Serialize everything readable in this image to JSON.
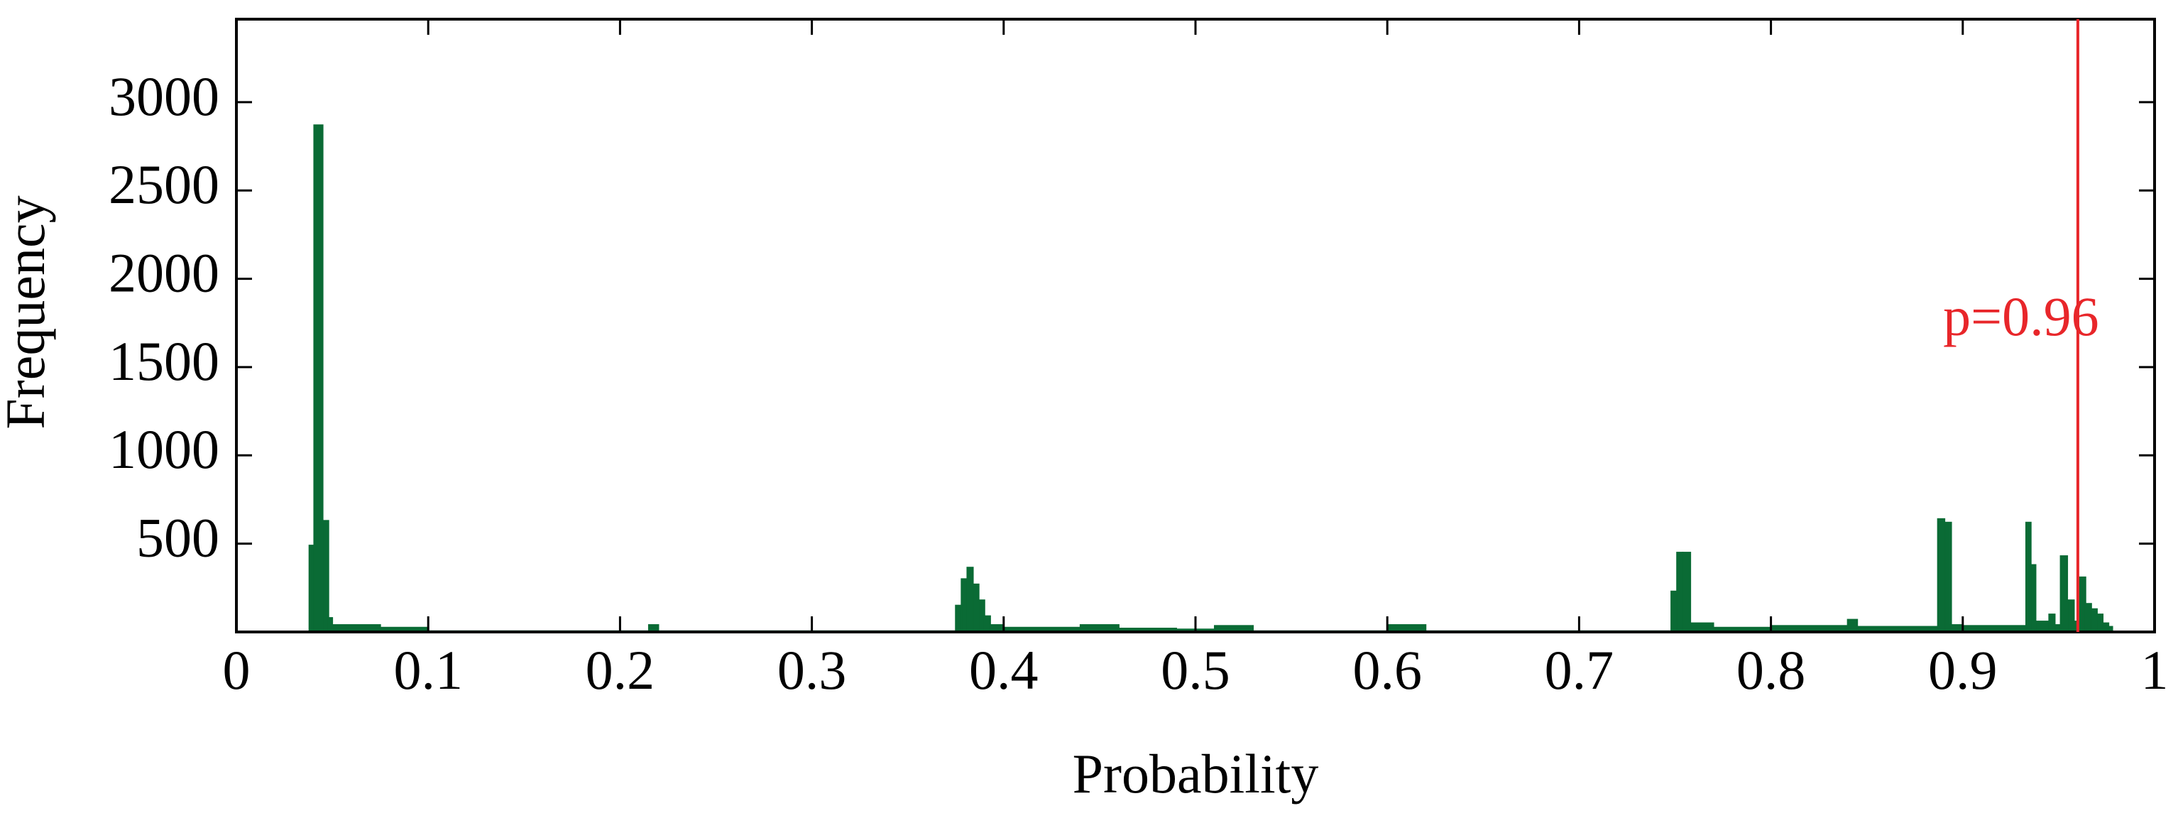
{
  "chart_data": {
    "type": "histogram",
    "xlabel": "Probability",
    "ylabel": "Frequency",
    "bins": [
      0.038,
      0.0405,
      0.045,
      0.048,
      0.05,
      0.075,
      0.1,
      0.215,
      0.22,
      0.375,
      0.378,
      0.381,
      0.384,
      0.387,
      0.39,
      0.393,
      0.4,
      0.44,
      0.46,
      0.49,
      0.51,
      0.53,
      0.6,
      0.62,
      0.748,
      0.751,
      0.754,
      0.758,
      0.77,
      0.8,
      0.84,
      0.845,
      0.887,
      0.8905,
      0.894,
      0.9,
      0.933,
      0.9355,
      0.938,
      0.945,
      0.948,
      0.951,
      0.9545,
      0.958,
      0.961,
      0.964,
      0.967,
      0.97,
      0.973,
      0.976,
      0.978
    ],
    "counts": [
      490,
      2870,
      630,
      80,
      40,
      25,
      5,
      40,
      5,
      150,
      300,
      365,
      270,
      180,
      90,
      40,
      25,
      40,
      20,
      15,
      35,
      5,
      40,
      5,
      230,
      450,
      450,
      50,
      25,
      35,
      70,
      30,
      640,
      620,
      40,
      35,
      620,
      380,
      60,
      100,
      40,
      430,
      180,
      60,
      310,
      160,
      130,
      100,
      50,
      30
    ],
    "color": "#0a6b35",
    "xlim": [
      0,
      1
    ],
    "xticks": [
      0,
      0.1,
      0.2,
      0.3,
      0.4,
      0.5,
      0.6,
      0.7,
      0.8,
      0.9,
      1
    ],
    "ylim": [
      0,
      3470
    ],
    "yticks": [
      500,
      1000,
      1500,
      2000,
      2500,
      3000
    ],
    "vline": {
      "value": 0.96,
      "label": "p=0.96",
      "color": "#e8262a"
    }
  }
}
